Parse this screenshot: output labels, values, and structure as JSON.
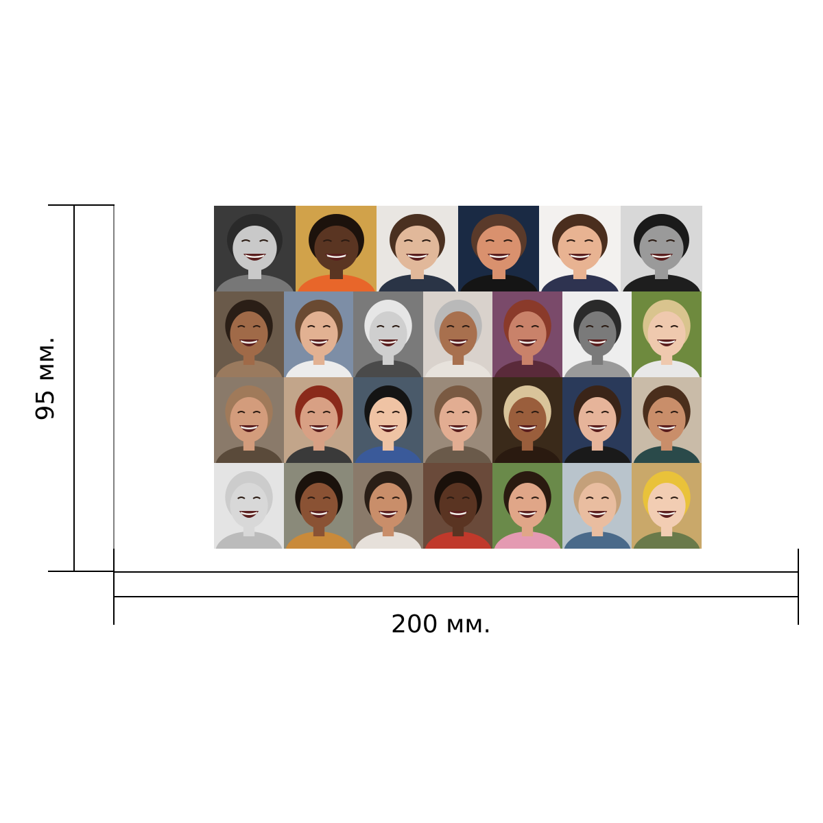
{
  "dimensions": {
    "width_label": "200 мм.",
    "height_label": "95 мм."
  },
  "collage": {
    "rows": [
      {
        "tiles": [
          {
            "name": "face-woman-laughing-bw",
            "bg": "#3a3a3a",
            "skin": "#c9c9c9",
            "hair": "#2a2a2a",
            "shirt": "#777777"
          },
          {
            "name": "face-woman-smiling-orange",
            "bg": "#d1a24a",
            "skin": "#5a3522",
            "hair": "#1c120c",
            "shirt": "#e8662a"
          },
          {
            "name": "face-young-man-glasses",
            "bg": "#e9e6e2",
            "skin": "#e1b89a",
            "hair": "#4a3020",
            "shirt": "#2a3446"
          },
          {
            "name": "face-man-glasses-dark",
            "bg": "#1a2a44",
            "skin": "#d9916e",
            "hair": "#5a3a2a",
            "shirt": "#151515"
          },
          {
            "name": "face-man-with-boy",
            "bg": "#f3f1ef",
            "skin": "#e8b392",
            "hair": "#4a2e1e",
            "shirt": "#2e3350"
          },
          {
            "name": "face-woman-smiling-bw",
            "bg": "#d8d8d8",
            "skin": "#9a9a9a",
            "hair": "#1a1a1a",
            "shirt": "#1e1e1e"
          }
        ]
      },
      {
        "tiles": [
          {
            "name": "face-man-scarf",
            "bg": "#6a5a4a",
            "skin": "#a06a48",
            "hair": "#2a1e16",
            "shirt": "#9a7a5e"
          },
          {
            "name": "face-young-woman-laughing",
            "bg": "#7d8ea6",
            "skin": "#e2b192",
            "hair": "#6a4a32",
            "shirt": "#ececec"
          },
          {
            "name": "face-elderly-woman-bw",
            "bg": "#7a7a7a",
            "skin": "#cfcfcf",
            "hair": "#e6e6e6",
            "shirt": "#4a4a4a"
          },
          {
            "name": "face-elderly-man-smiling",
            "bg": "#d9d2cc",
            "skin": "#a8704e",
            "hair": "#b9b9b9",
            "shirt": "#e7e2dc"
          },
          {
            "name": "face-woman-laughing-pink",
            "bg": "#7a4a6a",
            "skin": "#c9826a",
            "hair": "#8a3a2a",
            "shirt": "#5a2a3a"
          },
          {
            "name": "face-couple-laughing-bw",
            "bg": "#eeeeee",
            "skin": "#7a7a7a",
            "hair": "#2a2a2a",
            "shirt": "#9a9a9a"
          },
          {
            "name": "face-girl-blonde",
            "bg": "#6e8a3e",
            "skin": "#efc9ae",
            "hair": "#d9c48e",
            "shirt": "#e8e8e8"
          }
        ]
      },
      {
        "tiles": [
          {
            "name": "face-bald-man-smiling",
            "bg": "#8a7a6a",
            "skin": "#d39c7c",
            "hair": "#a07a5a",
            "shirt": "#5a4a3a"
          },
          {
            "name": "face-woman-red-hair",
            "bg": "#c2a58a",
            "skin": "#d8a084",
            "hair": "#8a2a1a",
            "shirt": "#3a3a3a"
          },
          {
            "name": "face-asian-girl-laughing",
            "bg": "#4a5a6a",
            "skin": "#efc3a4",
            "hair": "#141414",
            "shirt": "#3a5a9a"
          },
          {
            "name": "face-girl-laughing-eyes-closed",
            "bg": "#9a8a7a",
            "skin": "#e2ad92",
            "hair": "#7a5a42",
            "shirt": "#6a5a4a"
          },
          {
            "name": "face-woman-hat-laughing",
            "bg": "#3a2a1a",
            "skin": "#9a5e3c",
            "hair": "#d9c49a",
            "shirt": "#2a1a10"
          },
          {
            "name": "face-woman-dark-hair-smiling",
            "bg": "#2a3a5a",
            "skin": "#e6b49a",
            "hair": "#3a2418",
            "shirt": "#1a1a1a"
          },
          {
            "name": "face-girl-long-hair",
            "bg": "#c9bba8",
            "skin": "#c98e6a",
            "hair": "#4a2e1c",
            "shirt": "#2a4a4a"
          }
        ]
      },
      {
        "tiles": [
          {
            "name": "face-baby-bw",
            "bg": "#e4e4e4",
            "skin": "#d8d8d8",
            "hair": "#cccccc",
            "shirt": "#bbbbbb"
          },
          {
            "name": "face-young-man-smiling",
            "bg": "#8a8a7a",
            "skin": "#8a5234",
            "hair": "#1a120c",
            "shirt": "#c98a3a"
          },
          {
            "name": "face-man-hat-smiling",
            "bg": "#8a7a6a",
            "skin": "#c98e6a",
            "hair": "#2a1e16",
            "shirt": "#e6e0da"
          },
          {
            "name": "face-child-laughing",
            "bg": "#6a4a3a",
            "skin": "#5a3422",
            "hair": "#1a100a",
            "shirt": "#c0392b"
          },
          {
            "name": "face-teen-boy-smiling",
            "bg": "#6a8a4a",
            "skin": "#e0a688",
            "hair": "#2a1a10",
            "shirt": "#e49ab2"
          },
          {
            "name": "face-boy-bangs-laughing",
            "bg": "#b9c4cc",
            "skin": "#e9bda0",
            "hair": "#c4a07a",
            "shirt": "#4a6a8a"
          },
          {
            "name": "face-baby-yellow-hat",
            "bg": "#c9a86a",
            "skin": "#f2cdb3",
            "hair": "#e9c23a",
            "shirt": "#6a7a4a"
          }
        ]
      }
    ]
  }
}
